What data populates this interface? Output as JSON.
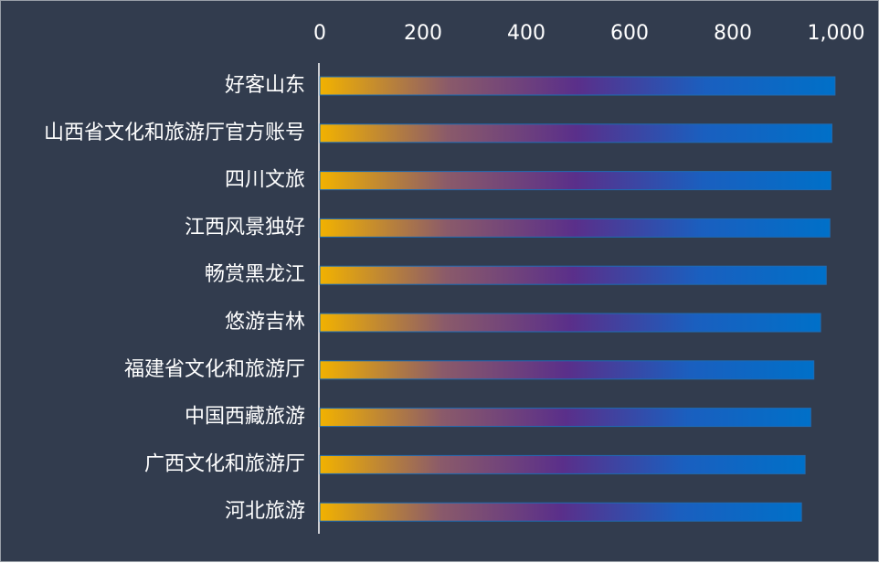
{
  "chart_data": {
    "type": "bar",
    "orientation": "horizontal",
    "categories": [
      "好客山东",
      "山西省文化和旅游厅官方账号",
      "四川文旅",
      "江西风景独好",
      "畅赏黑龙江",
      "悠游吉林",
      "福建省文化和旅游厅",
      "中国西藏旅游",
      "广西文化和旅游厅",
      "河北旅游"
    ],
    "values": [
      998,
      992,
      990,
      988,
      981,
      970,
      957,
      951,
      940,
      933
    ],
    "xlim": [
      0,
      1000
    ],
    "x_ticks": [
      0,
      200,
      400,
      600,
      800,
      1000
    ],
    "x_tick_labels": [
      "0",
      "200",
      "400",
      "600",
      "800",
      "1,000"
    ],
    "x_axis_position": "top",
    "grid": false,
    "legend": "none",
    "title": "",
    "xlabel": "",
    "ylabel": "",
    "colors": {
      "background": "#323c4e",
      "text": "#ffffff",
      "axis_line": "#ffffff",
      "bar_gradient": [
        "#f2b200",
        "#8a5a6a",
        "#5a2f8a",
        "#1a5fbf",
        "#0070c8"
      ],
      "bar_border": "#1f6bb3"
    }
  }
}
